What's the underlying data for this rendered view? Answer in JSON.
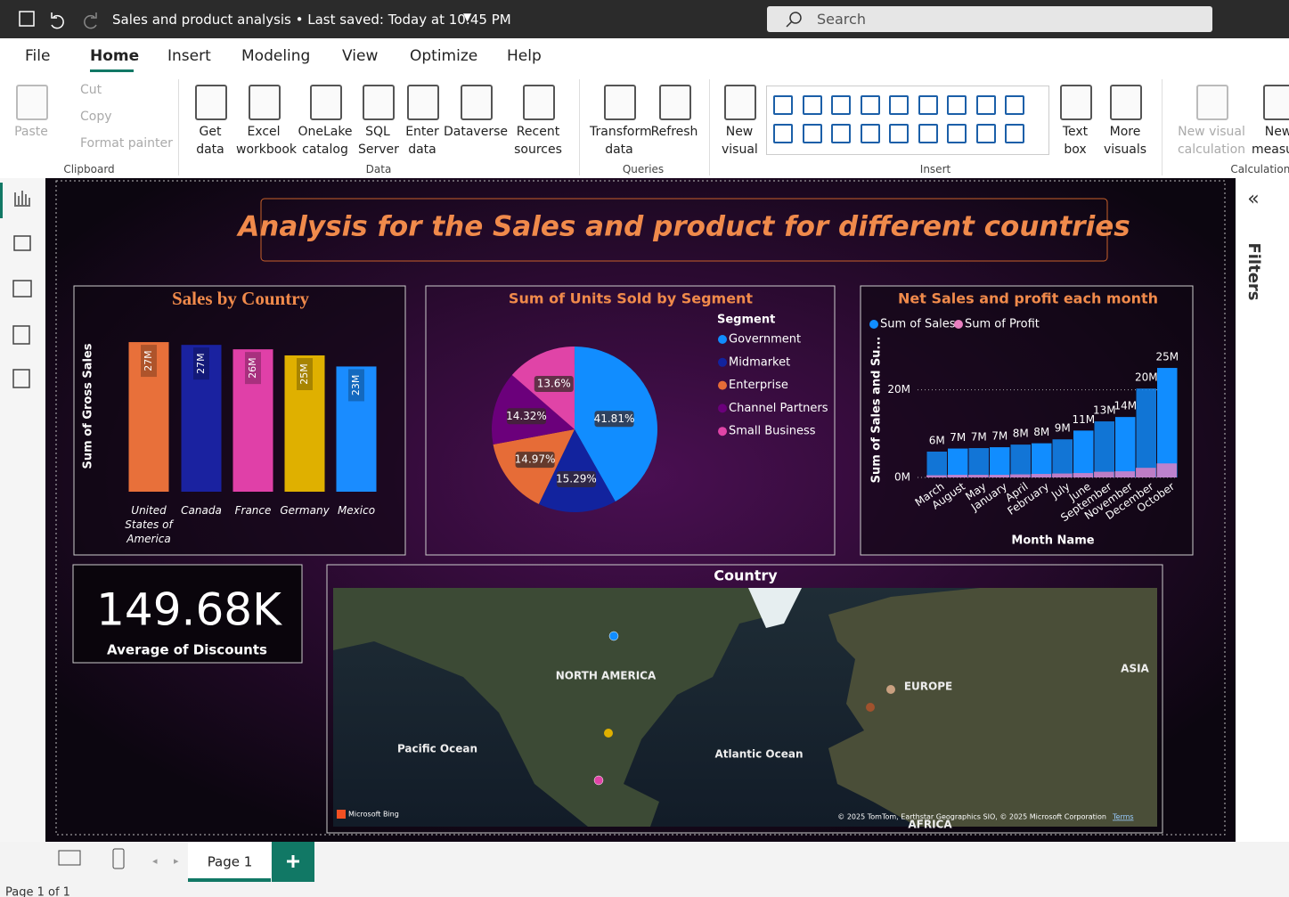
{
  "titlebar": {
    "title": "Sales and product analysis • Last saved: Today at 10:45 PM",
    "search": "Search"
  },
  "menu": [
    "File",
    "Home",
    "Insert",
    "Modeling",
    "View",
    "Optimize",
    "Help"
  ],
  "ribbon": {
    "buttons": [
      "Paste",
      "Get data",
      "Excel workbook",
      "OneLake catalog",
      "SQL Server",
      "Enter data",
      "Dataverse",
      "Recent sources",
      "Transform data",
      "Refresh",
      "New visual",
      "Text box",
      "More visuals",
      "New visual calculation",
      "New measure"
    ],
    "clipboard_small": [
      "Cut",
      "Copy",
      "Format painter"
    ],
    "groups": [
      "Clipboard",
      "Data",
      "Queries",
      "Insert",
      "Calculations"
    ]
  },
  "report": {
    "title": "Analysis for the Sales and product for different countries",
    "card": {
      "value": "149.68K",
      "label": "Average of Discounts"
    },
    "map": {
      "title": "Country",
      "labels": [
        "NORTH AMERICA",
        "EUROPE",
        "ASIA",
        "Pacific Ocean",
        "Atlantic Ocean",
        "AFRICA"
      ],
      "attribution": "Microsoft Bing",
      "copyright": "© 2025 TomTom, Earthstar Geographics SIO, © 2025 Microsoft Corporation",
      "terms": "Terms"
    }
  },
  "filters": "Filters",
  "pages": {
    "tab": "Page 1",
    "status": "Page 1 of 1"
  },
  "chart_data": [
    {
      "type": "bar",
      "title": "Sales by Country",
      "y_label": "Sum of Gross Sales",
      "categories": [
        "United States of America",
        "Canada",
        "France",
        "Germany",
        "Mexico"
      ],
      "values": [
        27.0,
        26.5,
        25.7,
        24.6,
        22.6
      ],
      "value_labels": [
        "27M",
        "27M",
        "26M",
        "25M",
        "23M"
      ],
      "colors": [
        "#e8703a",
        "#1a22a0",
        "#e040a8",
        "#dfb000",
        "#1a8cff"
      ]
    },
    {
      "type": "pie",
      "title": "Sum of Units Sold by Segment",
      "legend_title": "Segment",
      "categories": [
        "Government",
        "Midmarket",
        "Enterprise",
        "Channel Partners",
        "Small Business"
      ],
      "values": [
        41.81,
        15.29,
        14.97,
        14.32,
        13.6
      ],
      "value_labels": [
        "41.81%",
        "15.29%",
        "14.97%",
        "14.32%",
        "13.6%"
      ],
      "colors": [
        "#118dff",
        "#12239e",
        "#e66c37",
        "#6b007b",
        "#e044a7"
      ]
    },
    {
      "type": "column",
      "title": "Net Sales and profit each month",
      "x_label": "Month Name",
      "y_label": "Sum of Sales and Su...",
      "categories": [
        "March",
        "August",
        "May",
        "January",
        "April",
        "February",
        "July",
        "June",
        "September",
        "November",
        "December",
        "October"
      ],
      "series": [
        {
          "name": "Sum of Sales",
          "color": "#118dff",
          "values": [
            5.9,
            6.6,
            6.7,
            6.9,
            7.5,
            7.8,
            8.7,
            10.7,
            12.8,
            13.8,
            20.3,
            25.0
          ],
          "value_labels": [
            "6M",
            "7M",
            "7M",
            "7M",
            "8M",
            "8M",
            "9M",
            "11M",
            "13M",
            "14M",
            "20M",
            "25M"
          ]
        },
        {
          "name": "Sum of Profit",
          "color": "#e87fc0",
          "values": [
            0.5,
            0.6,
            0.6,
            0.6,
            0.7,
            0.8,
            0.9,
            1.0,
            1.3,
            1.4,
            2.2,
            3.2
          ]
        }
      ],
      "ylim": [
        0,
        25.5
      ],
      "yticks": [
        {
          "value": 0,
          "label": "0M"
        },
        {
          "value": 20,
          "label": "20M"
        }
      ],
      "grid": true
    }
  ]
}
